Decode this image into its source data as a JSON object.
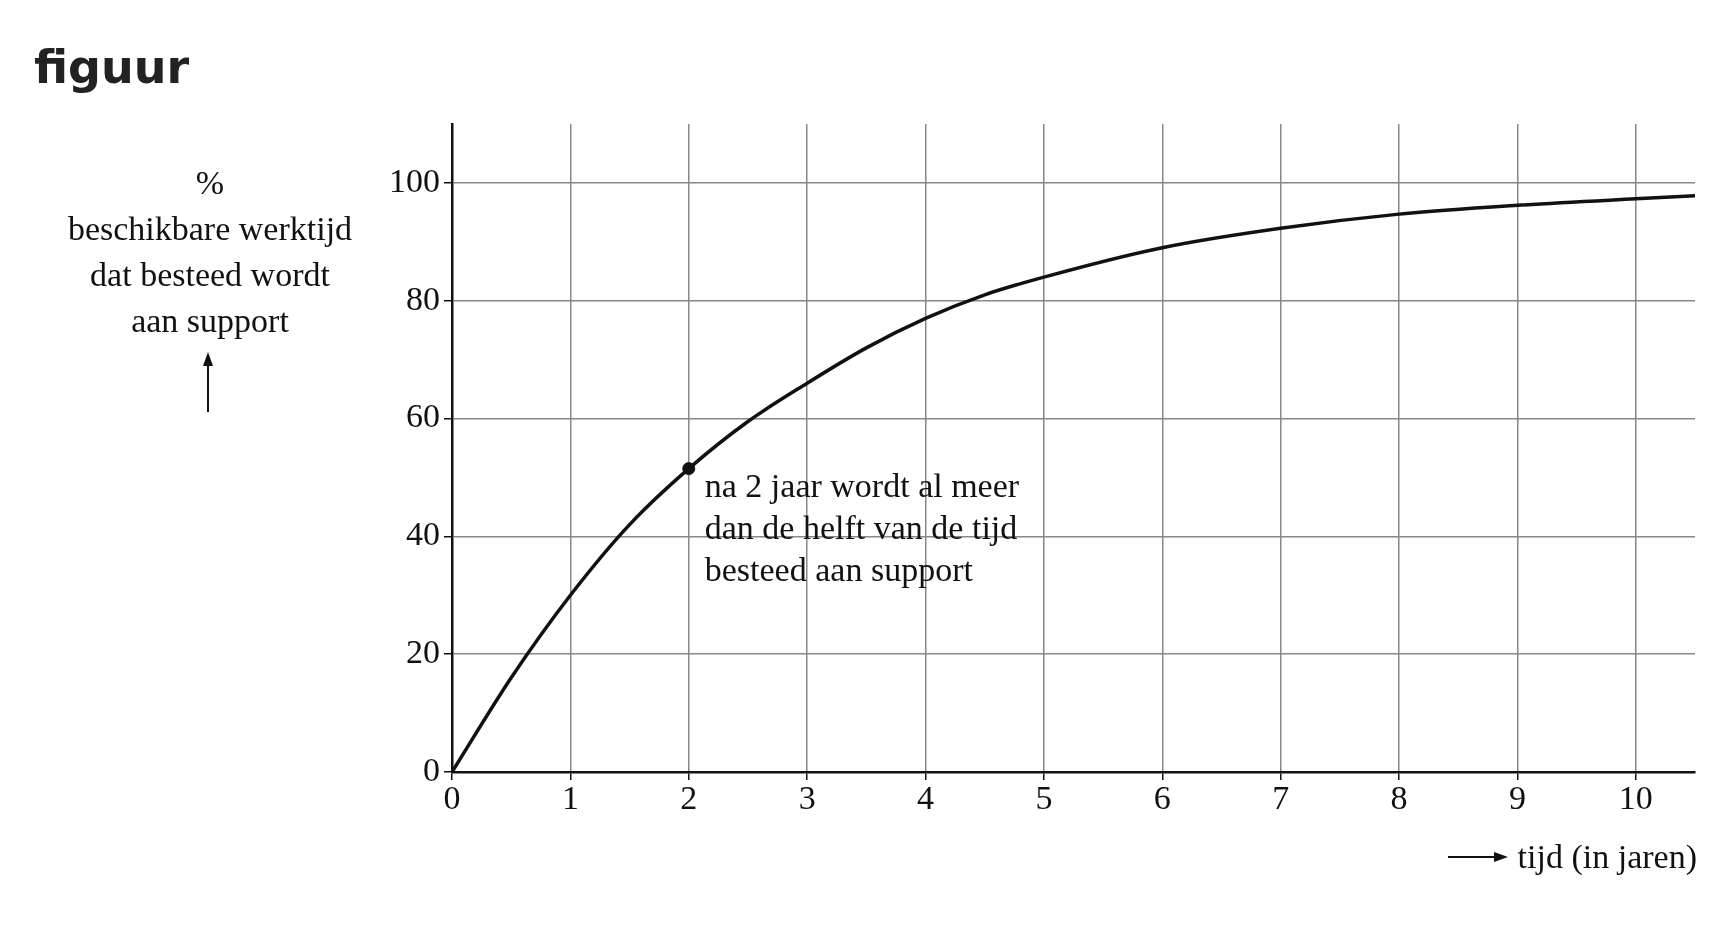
{
  "chart_data": {
    "type": "line",
    "title": "figuur",
    "xlabel": "tijd (in jaren)",
    "ylabel": "%\nbeschikbare werktijd\ndat besteed wordt\naan support",
    "xlim": [
      0,
      10.5
    ],
    "xticks": [
      0,
      1,
      2,
      3,
      4,
      5,
      6,
      7,
      8,
      9,
      10
    ],
    "ylim": [
      0,
      110
    ],
    "yticks": [
      0,
      20,
      40,
      60,
      80,
      100
    ],
    "grid": true,
    "marker": "none",
    "line_style": "solid",
    "series": [
      {
        "type": "line",
        "color": "#111111",
        "x": [
          0,
          0.5,
          1,
          1.5,
          2,
          2.5,
          3,
          3.5,
          4,
          4.5,
          5,
          6,
          7,
          8,
          9,
          10,
          10.5
        ],
        "values": [
          0,
          16,
          30,
          42,
          51.5,
          59.5,
          66,
          72,
          77,
          81,
          84,
          89,
          92.3,
          94.7,
          96.2,
          97.3,
          97.8
        ]
      },
      {
        "type": "scatter",
        "color": "#111111",
        "marker": "circle",
        "x": [
          2
        ],
        "values": [
          51.5
        ]
      }
    ],
    "annotations": [
      {
        "text": "na 2 jaar wordt al meer dan de helft van de tijd besteed aan support",
        "x": 2,
        "y": 51.5
      }
    ]
  }
}
